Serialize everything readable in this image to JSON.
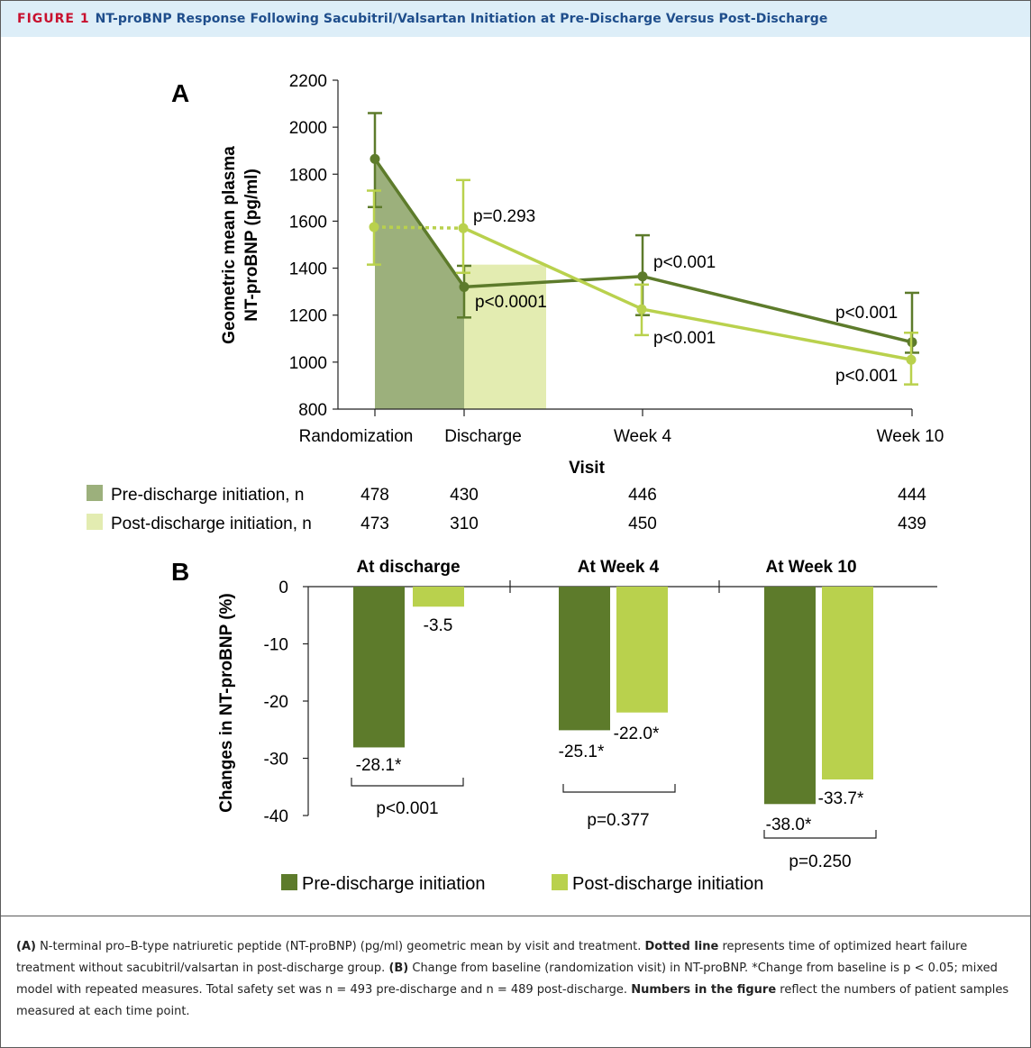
{
  "figure": {
    "label": "FIGURE 1",
    "title": "NT-proBNP Response Following Sacubitril/Valsartan Initiation at Pre-Discharge Versus Post-Discharge"
  },
  "colors": {
    "pre": "#5d7b2b",
    "post": "#b9d14d",
    "pre_area": "#9cb07c",
    "post_area": "#e3ecb1",
    "title": "#1f4e8c",
    "figure_label": "#c8102e",
    "header_bg": "#ddeef8"
  },
  "chart_data": [
    {
      "panel": "A",
      "type": "line",
      "ylabel_lines": [
        "Geometric mean plasma",
        "NT-proBNP (pg/ml)"
      ],
      "xlabel": "Visit",
      "ylim": [
        800,
        2200
      ],
      "yticks": [
        800,
        1000,
        1200,
        1400,
        1600,
        1800,
        2000,
        2200
      ],
      "categories": [
        "Randomization",
        "Discharge",
        "Week 4",
        "Week 10"
      ],
      "series": [
        {
          "key": "pre",
          "values": [
            1865,
            1320,
            1365,
            1085
          ],
          "err_low": [
            1660,
            1190,
            1200,
            1040
          ],
          "err_high": [
            2060,
            1410,
            1540,
            1295
          ]
        },
        {
          "key": "post",
          "values": [
            1575,
            1570,
            1225,
            1010
          ],
          "err_low": [
            1415,
            1380,
            1115,
            905
          ],
          "err_high": [
            1730,
            1775,
            1330,
            1125
          ],
          "dotted_segment": [
            0,
            1
          ]
        }
      ],
      "annotations": [
        "p=0.293",
        "p<0.0001",
        "p<0.001",
        "p<0.001",
        "p<0.001",
        "p<0.001"
      ],
      "n_table": {
        "rows": [
          {
            "key": "pre",
            "label": "Pre-discharge initiation, n",
            "values": [
              "478",
              "430",
              "446",
              "444"
            ]
          },
          {
            "key": "post",
            "label": "Post-discharge initiation, n",
            "values": [
              "473",
              "310",
              "450",
              "439"
            ]
          }
        ]
      }
    },
    {
      "panel": "B",
      "type": "bar",
      "ylabel": "Changes in NT-proBNP  (%)",
      "ylim": [
        -40,
        0
      ],
      "yticks": [
        0,
        -10,
        -20,
        -30,
        -40
      ],
      "groups": [
        "At discharge",
        "At Week 4",
        "At Week 10"
      ],
      "series": [
        {
          "name": "Pre-discharge initiation",
          "key": "pre",
          "values": [
            -28.1,
            -25.1,
            -38.0
          ],
          "labels": [
            "-28.1*",
            "-25.1*",
            "-38.0*"
          ]
        },
        {
          "name": "Post-discharge initiation",
          "key": "post",
          "values": [
            -3.5,
            -22.0,
            -33.7
          ],
          "labels": [
            "-3.5",
            "-22.0*",
            "-33.7*"
          ]
        }
      ],
      "group_pvalues": [
        "p<0.001",
        "p=0.377",
        "p=0.250"
      ]
    }
  ],
  "caption": {
    "a_label": "(A)",
    "a_text": " N-terminal pro–B-type natriuretic peptide (NT-proBNP) (pg/ml) geometric mean by visit and treatment. ",
    "dotted_bold": "Dotted line",
    "dotted_text": " represents time of optimized heart failure treatment without sacubitril/valsartan in post-discharge group. ",
    "b_label": "(B)",
    "b_text": " Change from baseline (randomization visit) in NT-proBNP. *Change from baseline is p < 0.05; mixed model with repeated measures. Total safety set was n = 493 pre-discharge and n = 489 post-discharge. ",
    "numbers_bold": "Numbers in the figure",
    "numbers_text": " reflect the numbers of patient samples measured at each time point."
  }
}
